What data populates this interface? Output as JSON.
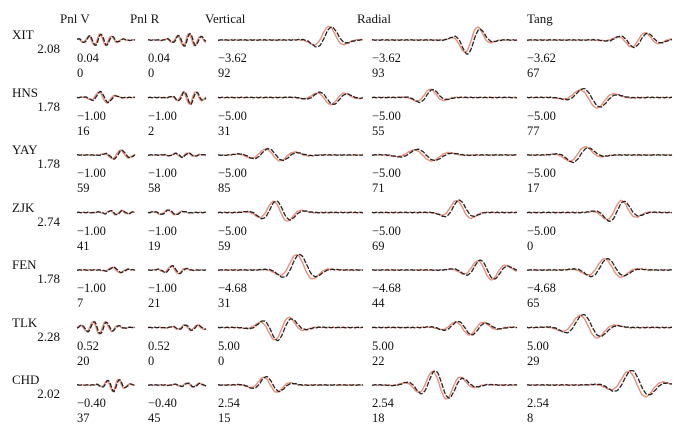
{
  "headers": [
    "Pnl V",
    "Pnl R",
    "Vertical",
    "Radial",
    "Tang"
  ],
  "colors": {
    "observed": "#222222",
    "synthetic": "#e8836b",
    "text": "#111111"
  },
  "stations": [
    {
      "name": "XIT",
      "dist": "2.08",
      "amps": [
        "0.04",
        "0.04",
        "−3.62",
        "−3.62",
        "−3.62"
      ],
      "shifts": [
        "0",
        "0",
        "92",
        "93",
        "67"
      ]
    },
    {
      "name": "HNS",
      "dist": "1.78",
      "amps": [
        "−1.00",
        "−1.00",
        "−5.00",
        "−5.00",
        "−5.00"
      ],
      "shifts": [
        "16",
        "2",
        "31",
        "55",
        "77"
      ]
    },
    {
      "name": "YAY",
      "dist": "1.78",
      "amps": [
        "−1.00",
        "−1.00",
        "−5.00",
        "−5.00",
        "−5.00"
      ],
      "shifts": [
        "59",
        "58",
        "85",
        "71",
        "17"
      ]
    },
    {
      "name": "ZJK",
      "dist": "2.74",
      "amps": [
        "−1.00",
        "−1.00",
        "−5.00",
        "−5.00",
        "−5.00"
      ],
      "shifts": [
        "41",
        "19",
        "59",
        "69",
        "0"
      ]
    },
    {
      "name": "FEN",
      "dist": "1.78",
      "amps": [
        "−1.00",
        "−1.00",
        "−4.68",
        "−4.68",
        "−4.68"
      ],
      "shifts": [
        "7",
        "21",
        "31",
        "44",
        "65"
      ]
    },
    {
      "name": "TLK",
      "dist": "2.28",
      "amps": [
        "0.52",
        "0.52",
        "5.00",
        "5.00",
        "5.00"
      ],
      "shifts": [
        "20",
        "0",
        "0",
        "22",
        "29"
      ]
    },
    {
      "name": "CHD",
      "dist": "2.02",
      "amps": [
        "−0.40",
        "−0.40",
        "2.54",
        "2.54",
        "2.54"
      ],
      "shifts": [
        "37",
        "45",
        "15",
        "18",
        "8"
      ]
    }
  ]
}
